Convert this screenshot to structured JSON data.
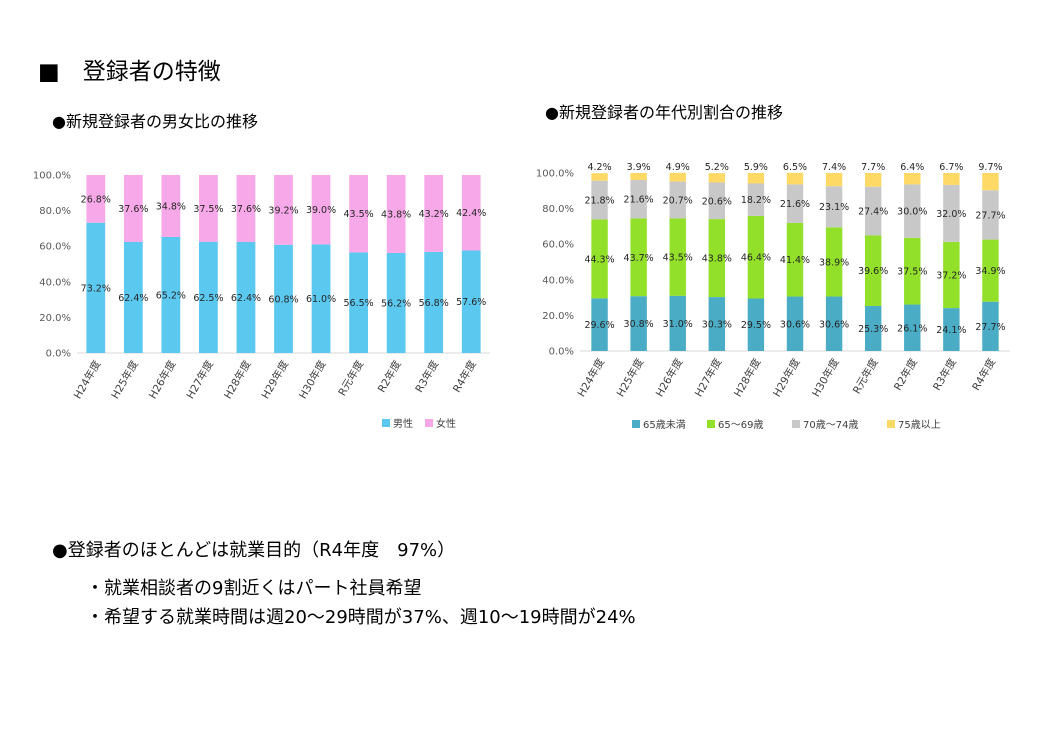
{
  "slide": {
    "title": "■　登録者の特徴",
    "summary": "●登録者のほとんどは就業目的（R4年度　97%）",
    "points": [
      "・就業相談者の9割近くはパート社員希望",
      "・希望する就業時間は週20～29時間が37%、週10～19時間が24%"
    ]
  },
  "chart_data": [
    {
      "type": "bar",
      "stacked": true,
      "title": "●新規登録者の男女比の推移",
      "categories": [
        "H24年度",
        "H25年度",
        "H26年度",
        "H27年度",
        "H28年度",
        "H29年度",
        "H30年度",
        "R元年度",
        "R2年度",
        "R3年度",
        "R4年度"
      ],
      "ylim": [
        0,
        100
      ],
      "yticks": [
        "0.0%",
        "20.0%",
        "40.0%",
        "60.0%",
        "80.0%",
        "100.0%"
      ],
      "series": [
        {
          "name": "男性",
          "color": "#5BC8F0",
          "values": [
            73.2,
            62.4,
            65.2,
            62.5,
            62.4,
            60.8,
            61.0,
            56.5,
            56.2,
            56.8,
            57.6
          ],
          "labels": [
            "73.2%",
            "62.4%",
            "65.2%",
            "62.5%",
            "62.4%",
            "60.8%",
            "61.0%",
            "56.5%",
            "56.2%",
            "56.8%",
            "57.6%"
          ]
        },
        {
          "name": "女性",
          "color": "#F7A8E8",
          "values": [
            26.8,
            37.6,
            34.8,
            37.5,
            37.6,
            39.2,
            39.0,
            43.5,
            43.8,
            43.2,
            42.4
          ],
          "labels": [
            "26.8%",
            "37.6%",
            "34.8%",
            "37.5%",
            "37.6%",
            "39.2%",
            "39.0%",
            "43.5%",
            "43.8%",
            "43.2%",
            "42.4%"
          ]
        }
      ],
      "legend": "bottom-right",
      "grid": false
    },
    {
      "type": "bar",
      "stacked": true,
      "title": "●新規登録者の年代別割合の推移",
      "categories": [
        "H24年度",
        "H25年度",
        "H26年度",
        "H27年度",
        "H28年度",
        "H29年度",
        "H30年度",
        "R元年度",
        "R2年度",
        "R3年度",
        "R4年度"
      ],
      "ylim": [
        0,
        100
      ],
      "yticks": [
        "0.0%",
        "20.0%",
        "40.0%",
        "60.0%",
        "80.0%",
        "100.0%"
      ],
      "series": [
        {
          "name": "65歳未満",
          "color": "#4BACC6",
          "values": [
            29.6,
            30.8,
            31.0,
            30.3,
            29.5,
            30.6,
            30.6,
            25.3,
            26.1,
            24.1,
            27.7
          ],
          "labels": [
            "29.6%",
            "30.8%",
            "31.0%",
            "30.3%",
            "29.5%",
            "30.6%",
            "30.6%",
            "25.3%",
            "26.1%",
            "24.1%",
            "27.7%"
          ]
        },
        {
          "name": "65～69歳",
          "color": "#92E02A",
          "values": [
            44.3,
            43.7,
            43.5,
            43.8,
            46.4,
            41.4,
            38.9,
            39.6,
            37.5,
            37.2,
            34.9
          ],
          "labels": [
            "44.3%",
            "43.7%",
            "43.5%",
            "43.8%",
            "46.4%",
            "41.4%",
            "38.9%",
            "39.6%",
            "37.5%",
            "37.2%",
            "34.9%"
          ]
        },
        {
          "name": "70歳～74歳",
          "color": "#C8C8C8",
          "values": [
            21.8,
            21.6,
            20.7,
            20.6,
            18.2,
            21.6,
            23.1,
            27.4,
            30.0,
            32.0,
            27.7
          ],
          "labels": [
            "21.8%",
            "21.6%",
            "20.7%",
            "20.6%",
            "18.2%",
            "21.6%",
            "23.1%",
            "27.4%",
            "30.0%",
            "32.0%",
            "27.7%"
          ]
        },
        {
          "name": "75歳以上",
          "color": "#FFD966",
          "values": [
            4.2,
            3.9,
            4.9,
            5.2,
            5.9,
            6.5,
            7.4,
            7.7,
            6.4,
            6.7,
            9.7
          ],
          "labels": [
            "4.2%",
            "3.9%",
            "4.9%",
            "5.2%",
            "5.9%",
            "6.5%",
            "7.4%",
            "7.7%",
            "6.4%",
            "6.7%",
            "9.7%"
          ]
        }
      ],
      "legend": "bottom",
      "grid": false
    }
  ]
}
